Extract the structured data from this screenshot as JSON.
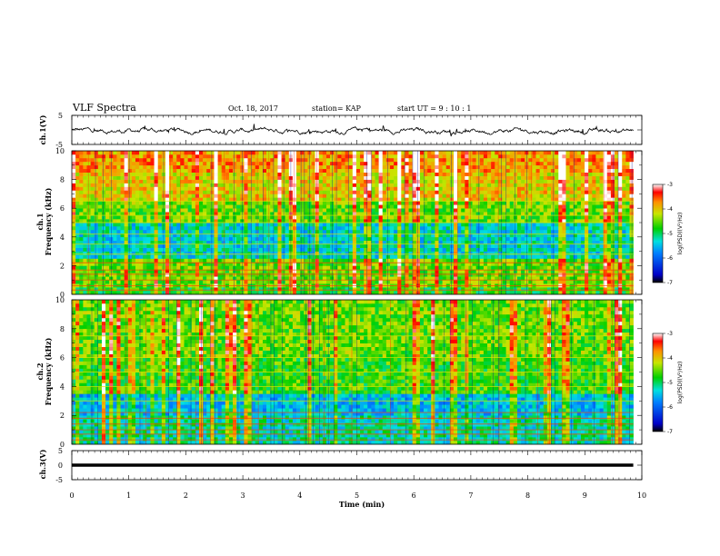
{
  "header": {
    "title": "VLF Spectra",
    "date": "Oct. 18, 2017",
    "station": "station= KAP",
    "start_ut": "start  UT  =    9  : 10 : 1"
  },
  "chart_data": [
    {
      "type": "line",
      "panel": "ch1-waveform",
      "ylabel": "ch.1(V)",
      "ylim": [
        -5,
        5
      ],
      "yticks": [
        "5",
        "-5"
      ],
      "xlim": [
        0,
        10
      ],
      "color": "#000000",
      "description_values": {
        "typical_min": -1.6,
        "typical_max": 1.4,
        "mean": -0.3
      }
    },
    {
      "type": "heatmap",
      "panel": "ch1-spectrogram",
      "ylabel_top": "ch.1",
      "ylabel": "Frequency  (kHz)",
      "ylim": [
        0,
        10
      ],
      "yticks": [
        "0",
        "2",
        "4",
        "6",
        "8",
        "10"
      ],
      "xlim": [
        0,
        9.85
      ],
      "colorbar": {
        "label": "log(PSD)(V²/Hz)",
        "ticks": [
          "-3",
          "-4",
          "-5",
          "-6",
          "-7"
        ],
        "range": [
          -7,
          -3
        ]
      },
      "horizontal_lines_khz": [
        0.3,
        0.6,
        1.0,
        1.4,
        1.7,
        2.2,
        2.8,
        3.5,
        4.2,
        5.0,
        5.5,
        6.5
      ]
    },
    {
      "type": "heatmap",
      "panel": "ch2-spectrogram",
      "ylabel_top": "ch.2",
      "ylabel": "Frequency  (kHz)",
      "ylim": [
        0,
        10
      ],
      "yticks": [
        "0",
        "2",
        "4",
        "6",
        "8",
        "10"
      ],
      "xlim": [
        0,
        9.85
      ],
      "colorbar": {
        "label": "log(PSD)(V²/Hz)",
        "ticks": [
          "-3",
          "-4",
          "-5",
          "-6",
          "-7"
        ],
        "range": [
          -7,
          -3
        ]
      },
      "horizontal_lines_khz": [
        0.3,
        0.7,
        1.0,
        1.4,
        1.8,
        2.2,
        3.0,
        4.0,
        5.0,
        6.0,
        7.5
      ]
    },
    {
      "type": "line",
      "panel": "ch3-waveform",
      "ylabel": "ch.3(V)",
      "ylim": [
        -5,
        5
      ],
      "yticks": [
        "5",
        "0",
        "-5"
      ],
      "xlim": [
        0,
        10
      ],
      "constant_value": 0,
      "color": "#000000"
    }
  ],
  "xaxis": {
    "label": "Time  (min)",
    "ticks": [
      "0",
      "1",
      "2",
      "3",
      "4",
      "5",
      "6",
      "7",
      "8",
      "9",
      "10"
    ],
    "range": [
      0,
      10
    ]
  }
}
